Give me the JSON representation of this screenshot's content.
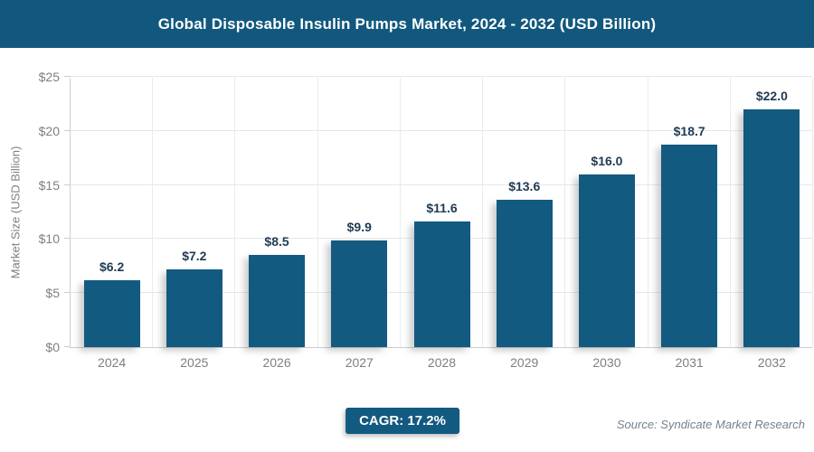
{
  "header": {
    "title": "Global Disposable Insulin Pumps Market, 2024 - 2032 (USD Billion)",
    "bg_color": "#12587E",
    "text_color": "#ffffff"
  },
  "chart_data": {
    "type": "bar",
    "title": "Global Disposable Insulin Pumps Market, 2024 - 2032 (USD Billion)",
    "categories": [
      "2024",
      "2025",
      "2026",
      "2027",
      "2028",
      "2029",
      "2030",
      "2031",
      "2032"
    ],
    "values": [
      6.2,
      7.2,
      8.5,
      9.9,
      11.6,
      13.6,
      16.0,
      18.7,
      22.0
    ],
    "value_labels": [
      "$6.2",
      "$7.2",
      "$8.5",
      "$9.9",
      "$11.6",
      "$13.6",
      "$16.0",
      "$18.7",
      "$22.0"
    ],
    "xlabel": "",
    "ylabel": "Market Size (USD Billion)",
    "ylim": [
      0,
      25
    ],
    "ytick_values": [
      0,
      5,
      10,
      15,
      20,
      25
    ],
    "ytick_labels": [
      "$0",
      "$5",
      "$10",
      "$15",
      "$20",
      "$25"
    ],
    "grid": true,
    "legend": false,
    "bar_color": "#135A80",
    "value_label_color": "#1F3A54",
    "axis_label_color": "#7f7f7f"
  },
  "footer": {
    "cagr_label": "CAGR: 17.2%",
    "source": "Source: Syndicate Market Research"
  }
}
